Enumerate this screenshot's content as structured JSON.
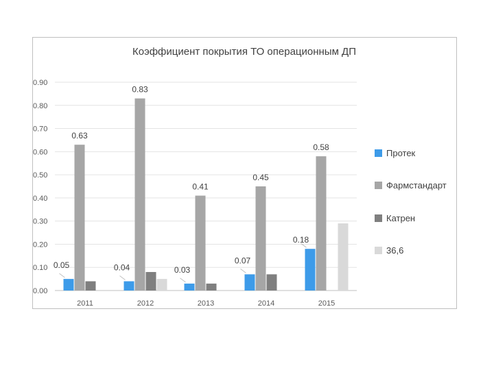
{
  "chart_data": {
    "type": "bar",
    "title": "Коэффициент покрытия ТО операционным ДП",
    "xlabel": "",
    "ylabel": "",
    "categories": [
      "2011",
      "2012",
      "2013",
      "2014",
      "2015"
    ],
    "ylim": [
      0,
      0.9
    ],
    "yticks": [
      "0.00",
      "0.10",
      "0.20",
      "0.30",
      "0.40",
      "0.50",
      "0.60",
      "0.70",
      "0.80",
      "0.90"
    ],
    "grid": true,
    "legend_position": "right",
    "series": [
      {
        "name": "Протек",
        "color": "#3d9be9",
        "values": [
          0.05,
          0.04,
          0.03,
          0.07,
          0.18
        ],
        "labels": [
          "0.05",
          "0.04",
          "0.03",
          "0.07",
          "0.18"
        ]
      },
      {
        "name": "Фармстандарт",
        "color": "#a6a6a6",
        "values": [
          0.63,
          0.83,
          0.41,
          0.45,
          0.58
        ],
        "labels": [
          "0.63",
          "0.83",
          "0.41",
          "0.45",
          "0.58"
        ]
      },
      {
        "name": "Катрен",
        "color": "#7f7f7f",
        "values": [
          0.04,
          0.08,
          0.03,
          0.07,
          null
        ],
        "labels": []
      },
      {
        "name": "36,6",
        "color": "#d9d9d9",
        "values": [
          null,
          0.05,
          null,
          null,
          0.29
        ],
        "labels": []
      }
    ]
  }
}
